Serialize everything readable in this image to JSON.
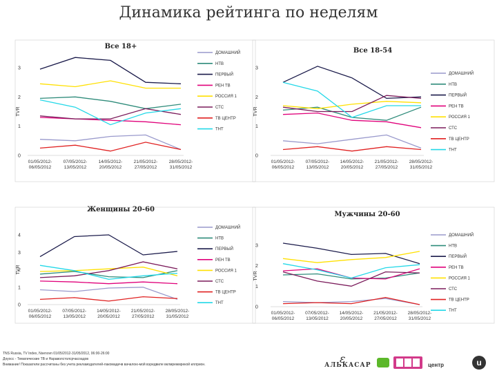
{
  "page_title": "Динамика рейтинга по неделям",
  "footer": [
    "TNS Russia, TV Index, Nsenovn 01/05/2012-31/05/2012, 06:00-26:00",
    "Доуосс - Тематические ТВ и Нараволстолсрчасоадов",
    "Внимание! Показатели рассчитаны без учета рекламодателей-лакомадечв вачалою-мой вэредвиле вклмрежмрекой иллрион."
  ],
  "logos": {
    "alkasar": "АЛЬКАСАР",
    "center": "центр"
  },
  "colors": {
    "ДОМАШНИЙ": "#9999cc",
    "НТВ": "#2e8b7a",
    "ПЕРВЫЙ": "#1a1a4a",
    "РЕН ТВ": "#e0007a",
    "РОССИЯ 1": "#ffe000",
    "СТС": "#7a1a5a",
    "ТВ ЦЕНТР": "#e02020",
    "ТНТ": "#22d8e8"
  },
  "chart_data": [
    {
      "type": "line",
      "title": "Все 18+",
      "ylabel": "TVR",
      "ylim": [
        0,
        3
      ],
      "yticks": [
        "0",
        "1",
        "2",
        "3"
      ],
      "categories": [
        "01/05/2012-06/05/2012",
        "07/05/2012-13/05/2012",
        "14/05/2012-20/05/2012",
        "21/05/2012-27/05/2012",
        "28/05/2012-31/05/2012"
      ],
      "legend": [
        "ДОМАШНИЙ",
        "НТВ",
        "ПЕРВЫЙ",
        "РЕН ТВ",
        "РОССИЯ 1",
        "СТС",
        "ТВ ЦЕНТР",
        "ТНТ"
      ],
      "series": [
        {
          "name": "ДОМАШНИЙ",
          "values": [
            0.55,
            0.5,
            0.65,
            0.7,
            0.2
          ]
        },
        {
          "name": "НТВ",
          "values": [
            1.95,
            2.0,
            1.85,
            1.6,
            1.75
          ]
        },
        {
          "name": "ПЕРВЫЙ",
          "values": [
            2.95,
            3.35,
            3.25,
            2.5,
            2.45
          ]
        },
        {
          "name": "РЕН ТВ",
          "values": [
            1.3,
            1.25,
            1.2,
            1.15,
            1.05
          ]
        },
        {
          "name": "РОССИЯ 1",
          "values": [
            2.45,
            2.35,
            2.55,
            2.3,
            2.3
          ]
        },
        {
          "name": "СТС",
          "values": [
            1.35,
            1.25,
            1.25,
            1.6,
            1.4
          ]
        },
        {
          "name": "ТВ ЦЕНТР",
          "values": [
            0.25,
            0.35,
            0.15,
            0.45,
            0.2
          ]
        },
        {
          "name": "ТНТ",
          "values": [
            1.9,
            1.65,
            1.05,
            1.45,
            1.6
          ]
        }
      ]
    },
    {
      "type": "line",
      "title": "Все 18-54",
      "ylabel": "TVR",
      "ylim": [
        0,
        3
      ],
      "yticks": [
        "0",
        "1",
        "2",
        "3"
      ],
      "categories": [
        "01/05/2012-06/05/2012",
        "07/05/2012-13/05/2012",
        "14/05/2012-20/05/2012",
        "21/05/2012-27/05/2012",
        "28/05/2012-31/05/2012"
      ],
      "legend": [
        "ДОМАШНИЙ",
        "НТВ",
        "ПЕРВЫЙ",
        "РЕН ТВ",
        "РОССИЯ 1",
        "СТС",
        "ТВ ЦЕНТР",
        "ТНТ"
      ],
      "series": [
        {
          "name": "ДОМАШНИЙ",
          "values": [
            0.5,
            0.4,
            0.55,
            0.7,
            0.25
          ]
        },
        {
          "name": "НТВ",
          "values": [
            1.55,
            1.65,
            1.3,
            1.2,
            1.65
          ]
        },
        {
          "name": "ПЕРВЫЙ",
          "values": [
            2.5,
            3.05,
            2.65,
            1.95,
            2.0
          ]
        },
        {
          "name": "РЕН ТВ",
          "values": [
            1.4,
            1.45,
            1.2,
            1.15,
            0.95
          ]
        },
        {
          "name": "РОССИЯ 1",
          "values": [
            1.7,
            1.6,
            1.75,
            1.85,
            1.8
          ]
        },
        {
          "name": "СТС",
          "values": [
            1.65,
            1.5,
            1.5,
            2.05,
            1.95
          ]
        },
        {
          "name": "ТВ ЦЕНТР",
          "values": [
            0.2,
            0.3,
            0.15,
            0.3,
            0.2
          ]
        },
        {
          "name": "ТНТ",
          "values": [
            2.5,
            2.2,
            1.3,
            1.7,
            1.7
          ]
        }
      ]
    },
    {
      "type": "line",
      "title": "Женщины 20-60",
      "ylabel": "TVR",
      "ylim": [
        0,
        4
      ],
      "yticks": [
        "0",
        "1",
        "2",
        "3",
        "4"
      ],
      "categories": [
        "01/05/2012-06/05/2012",
        "07/05/2012-13/05/2012",
        "14/05/2012-20/05/2012",
        "21/05/2012-27/05/2012",
        "28/05/2012-31/05/2012"
      ],
      "legend": [
        "ДОМАШНИЙ",
        "НТВ",
        "ПЕРВЫЙ",
        "РЕН ТВ",
        "РОССИЯ 1",
        "СТС",
        "ТВ ЦЕНТР",
        "ТНТ"
      ],
      "series": [
        {
          "name": "ДОМАШНИЙ",
          "values": [
            0.85,
            0.75,
            0.95,
            1.0,
            0.3
          ]
        },
        {
          "name": "НТВ",
          "values": [
            1.75,
            1.9,
            1.6,
            1.55,
            1.95
          ]
        },
        {
          "name": "ПЕРВЫЙ",
          "values": [
            2.75,
            3.9,
            4.0,
            2.85,
            3.05
          ]
        },
        {
          "name": "РЕН ТВ",
          "values": [
            1.35,
            1.3,
            1.2,
            1.3,
            1.2
          ]
        },
        {
          "name": "РОССИЯ 1",
          "values": [
            1.9,
            1.95,
            2.05,
            2.15,
            1.65
          ]
        },
        {
          "name": "СТС",
          "values": [
            1.55,
            1.65,
            1.95,
            2.45,
            2.05
          ]
        },
        {
          "name": "ТВ ЦЕНТР",
          "values": [
            0.3,
            0.4,
            0.2,
            0.45,
            0.35
          ]
        },
        {
          "name": "ТНТ",
          "values": [
            2.25,
            1.95,
            1.45,
            1.65,
            1.8
          ]
        }
      ]
    },
    {
      "type": "line",
      "title": "Мужчины 20-60",
      "ylabel": "TVR",
      "ylim": [
        0,
        3
      ],
      "yticks": [
        "0",
        "1",
        "2",
        "3"
      ],
      "categories": [
        "01/05/2012-06/05/2012",
        "07/05/2012-13/05/2012",
        "14/05/2012-20/05/2012",
        "21/05/2012-27/05/2012",
        "28/05/2012-31/05/2012"
      ],
      "legend": [
        "ДОМАШНИЙ",
        "НТВ",
        "ПЕРВЫЙ",
        "РЕН ТВ",
        "РОССИЯ 1",
        "СТС",
        "ТВ ЦЕНТР",
        "ТНТ"
      ],
      "series": [
        {
          "name": "ДОМАШНИЙ",
          "values": [
            0.25,
            0.2,
            0.25,
            0.4,
            0.1
          ]
        },
        {
          "name": "НТВ",
          "values": [
            1.55,
            1.6,
            1.35,
            1.4,
            1.65
          ]
        },
        {
          "name": "ПЕРВЫЙ",
          "values": [
            3.1,
            2.85,
            2.55,
            2.6,
            2.1
          ]
        },
        {
          "name": "РЕН ТВ",
          "values": [
            1.75,
            1.85,
            1.4,
            1.35,
            1.85
          ]
        },
        {
          "name": "РОССИЯ 1",
          "values": [
            2.35,
            2.15,
            2.3,
            2.4,
            2.7
          ]
        },
        {
          "name": "СТС",
          "values": [
            1.7,
            1.25,
            1.0,
            1.7,
            1.65
          ]
        },
        {
          "name": "ТВ ЦЕНТР",
          "values": [
            0.15,
            0.2,
            0.15,
            0.45,
            0.1
          ]
        },
        {
          "name": "ТНТ",
          "values": [
            2.1,
            1.8,
            1.4,
            1.9,
            2.05
          ]
        }
      ]
    }
  ]
}
